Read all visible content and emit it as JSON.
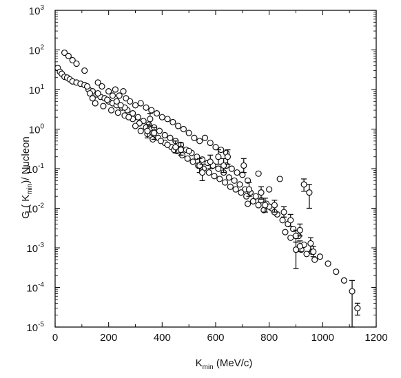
{
  "chart_data": {
    "type": "scatter",
    "title": "",
    "xlabel": {
      "main": "K",
      "sub": "min",
      "rest": " (MeV/c)"
    },
    "ylabel": {
      "prefix": "G ( K",
      "sub": "min",
      "rest": ")/ Nucleon"
    },
    "xlim": [
      0,
      1200
    ],
    "ylim": [
      1e-05,
      1000
    ],
    "yscale": "log",
    "grid": false,
    "x_ticks": [
      "0",
      "200",
      "400",
      "600",
      "800",
      "1000",
      "1200"
    ],
    "y_ticks": [
      "10",
      "10",
      "10",
      "10",
      "10",
      "10",
      "10",
      "10",
      "10"
    ],
    "y_tick_exponents": [
      "3",
      "2",
      "1",
      "0",
      "-1",
      "-2",
      "-3",
      "-4",
      "-5"
    ],
    "points": [
      [
        10,
        35
      ],
      [
        18,
        28
      ],
      [
        25,
        25
      ],
      [
        35,
        21
      ],
      [
        45,
        20
      ],
      [
        55,
        18
      ],
      [
        65,
        16
      ],
      [
        80,
        15
      ],
      [
        95,
        14
      ],
      [
        110,
        13
      ],
      [
        125,
        10
      ],
      [
        140,
        9
      ],
      [
        155,
        7.5
      ],
      [
        170,
        6.5
      ],
      [
        185,
        6
      ],
      [
        200,
        5
      ],
      [
        215,
        4.5
      ],
      [
        230,
        4
      ],
      [
        250,
        3.5
      ],
      [
        270,
        3
      ],
      [
        290,
        2.5
      ],
      [
        310,
        2
      ],
      [
        330,
        1.6
      ],
      [
        350,
        1.3
      ],
      [
        370,
        1.1
      ],
      [
        390,
        0.9
      ],
      [
        410,
        0.7
      ],
      [
        430,
        0.6
      ],
      [
        450,
        0.5
      ],
      [
        470,
        0.4
      ],
      [
        490,
        0.3
      ],
      [
        510,
        0.25
      ],
      [
        530,
        0.2
      ],
      [
        550,
        0.17
      ],
      [
        570,
        0.14
      ],
      [
        590,
        0.12
      ],
      [
        610,
        0.1
      ],
      [
        630,
        0.08
      ],
      [
        650,
        0.06
      ],
      [
        670,
        0.05
      ],
      [
        690,
        0.04
      ],
      [
        710,
        0.03
      ],
      [
        730,
        0.025
      ],
      [
        750,
        0.02
      ],
      [
        770,
        0.016
      ],
      [
        790,
        0.013
      ],
      [
        810,
        0.01
      ],
      [
        830,
        0.007
      ],
      [
        850,
        0.005
      ],
      [
        870,
        0.004
      ],
      [
        890,
        0.003
      ],
      [
        910,
        0.002
      ],
      [
        930,
        0.0012
      ],
      [
        960,
        0.0008
      ],
      [
        990,
        0.0006
      ],
      [
        1020,
        0.0004
      ],
      [
        1050,
        0.00025
      ],
      [
        1080,
        0.00015
      ],
      [
        35,
        85
      ],
      [
        50,
        70
      ],
      [
        65,
        55
      ],
      [
        80,
        45
      ],
      [
        110,
        30
      ],
      [
        160,
        15
      ],
      [
        175,
        12
      ],
      [
        200,
        9
      ],
      [
        225,
        10
      ],
      [
        240,
        7
      ],
      [
        255,
        9
      ],
      [
        265,
        6
      ],
      [
        280,
        5
      ],
      [
        300,
        4
      ],
      [
        320,
        4.5
      ],
      [
        340,
        3.5
      ],
      [
        360,
        3
      ],
      [
        380,
        2.5
      ],
      [
        400,
        2
      ],
      [
        420,
        1.8
      ],
      [
        440,
        1.5
      ],
      [
        460,
        1.2
      ],
      [
        480,
        1
      ],
      [
        500,
        0.8
      ],
      [
        520,
        0.6
      ],
      [
        540,
        0.5
      ],
      [
        560,
        0.6
      ],
      [
        580,
        0.45
      ],
      [
        600,
        0.35
      ],
      [
        620,
        0.3
      ],
      [
        640,
        0.25
      ],
      [
        150,
        4.5
      ],
      [
        180,
        3.8
      ],
      [
        210,
        3
      ],
      [
        235,
        2.6
      ],
      [
        260,
        2.2
      ],
      [
        290,
        1.8
      ],
      [
        315,
        1.4
      ],
      [
        340,
        1.1
      ],
      [
        365,
        0.8
      ],
      [
        385,
        0.6
      ],
      [
        410,
        0.45
      ],
      [
        435,
        0.35
      ],
      [
        455,
        0.28
      ],
      [
        475,
        0.22
      ],
      [
        495,
        0.18
      ],
      [
        515,
        0.15
      ],
      [
        535,
        0.12
      ],
      [
        555,
        0.1
      ],
      [
        575,
        0.08
      ],
      [
        595,
        0.065
      ],
      [
        615,
        0.055
      ],
      [
        635,
        0.045
      ],
      [
        655,
        0.035
      ],
      [
        675,
        0.03
      ],
      [
        695,
        0.025
      ],
      [
        715,
        0.02
      ],
      [
        720,
        0.013
      ],
      [
        740,
        0.015
      ],
      [
        760,
        0.012
      ],
      [
        780,
        0.009
      ],
      [
        800,
        0.011
      ],
      [
        820,
        0.008
      ],
      [
        640,
        0.12
      ],
      [
        660,
        0.1
      ],
      [
        680,
        0.08
      ],
      [
        700,
        0.07
      ],
      [
        720,
        0.05
      ],
      [
        760,
        0.075
      ],
      [
        800,
        0.03
      ],
      [
        840,
        0.055
      ],
      [
        860,
        0.0025
      ],
      [
        880,
        0.0018
      ],
      [
        920,
        0.0009
      ],
      [
        940,
        0.0007
      ],
      [
        970,
        0.0005
      ],
      [
        300,
        1.2
      ],
      [
        320,
        0.9
      ],
      [
        345,
        0.75
      ],
      [
        365,
        0.55
      ],
      [
        395,
        0.5
      ],
      [
        420,
        0.4
      ],
      [
        445,
        0.3
      ],
      [
        470,
        0.32
      ],
      [
        500,
        0.28
      ],
      [
        260,
        3.5
      ],
      [
        245,
        4
      ],
      [
        275,
        2
      ],
      [
        195,
        5.5
      ],
      [
        215,
        7
      ],
      [
        230,
        5
      ],
      [
        160,
        8
      ],
      [
        140,
        6
      ],
      [
        130,
        8
      ],
      [
        120,
        12
      ]
    ],
    "error_points": [
      [
        345,
        0.9,
        0.6,
        1.3
      ],
      [
        355,
        1.8,
        1.2,
        2.5
      ],
      [
        370,
        0.8,
        0.55,
        1.1
      ],
      [
        450,
        0.35,
        0.25,
        0.5
      ],
      [
        470,
        0.3,
        0.22,
        0.45
      ],
      [
        540,
        0.12,
        0.08,
        0.18
      ],
      [
        550,
        0.08,
        0.05,
        0.13
      ],
      [
        580,
        0.15,
        0.1,
        0.22
      ],
      [
        610,
        0.2,
        0.13,
        0.3
      ],
      [
        630,
        0.12,
        0.08,
        0.18
      ],
      [
        645,
        0.2,
        0.13,
        0.3
      ],
      [
        705,
        0.12,
        0.08,
        0.18
      ],
      [
        725,
        0.03,
        0.02,
        0.045
      ],
      [
        770,
        0.025,
        0.017,
        0.035
      ],
      [
        785,
        0.012,
        0.008,
        0.018
      ],
      [
        820,
        0.012,
        0.008,
        0.016
      ],
      [
        855,
        0.008,
        0.006,
        0.011
      ],
      [
        880,
        0.005,
        0.0035,
        0.007
      ],
      [
        900,
        0.002,
        0.0014,
        0.0028
      ],
      [
        915,
        0.0011,
        0.0008,
        0.0015
      ],
      [
        915,
        0.0028,
        0.002,
        0.004
      ],
      [
        930,
        0.04,
        0.027,
        0.055
      ],
      [
        950,
        0.025,
        0.01,
        0.04
      ],
      [
        955,
        0.0013,
        0.0008,
        0.0018
      ],
      [
        965,
        0.0008,
        0.0006,
        0.0011
      ],
      [
        900,
        0.0009,
        0.0003,
        0.0014
      ],
      [
        1110,
        8e-05,
        1e-05,
        0.00015
      ],
      [
        1130,
        3e-05,
        2e-05,
        4e-05
      ]
    ]
  }
}
